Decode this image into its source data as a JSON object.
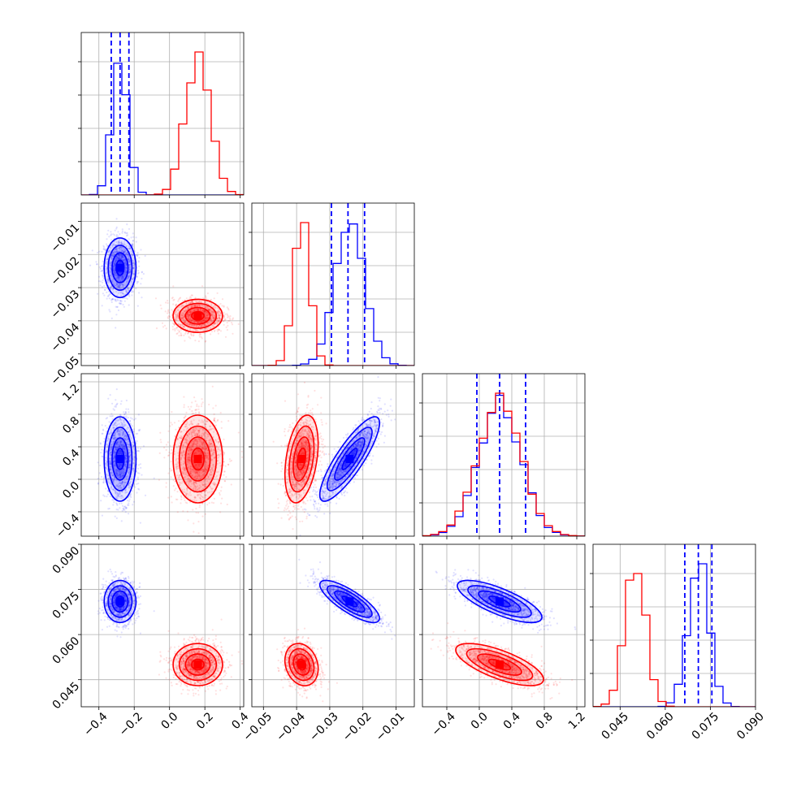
{
  "chart_data": {
    "type": "corner",
    "title": "",
    "colors": {
      "blue": "#0000ff",
      "red": "#ff0000",
      "grid": "#b0b0b0"
    },
    "parameters": [
      {
        "index": 0,
        "range": [
          -0.5,
          0.42
        ],
        "ticks": [
          -0.4,
          -0.2,
          0.0,
          0.2,
          0.4
        ],
        "tick_labels": [
          "−0.4",
          "−0.2",
          "0.0",
          "0.2",
          "0.4"
        ]
      },
      {
        "index": 1,
        "range": [
          -0.0535,
          -0.0045
        ],
        "ticks": [
          -0.05,
          -0.04,
          -0.03,
          -0.02,
          -0.01
        ],
        "tick_labels": [
          "−0.05",
          "−0.04",
          "−0.03",
          "−0.02",
          "−0.01"
        ]
      },
      {
        "index": 2,
        "range": [
          -0.7,
          1.3
        ],
        "ticks": [
          -0.4,
          0.0,
          0.4,
          0.8,
          1.2
        ],
        "tick_labels": [
          "−0.4",
          "0.0",
          "0.4",
          "0.8",
          "1.2"
        ]
      },
      {
        "index": 3,
        "range": [
          0.036,
          0.09
        ],
        "ticks": [
          0.045,
          0.06,
          0.075,
          0.09
        ],
        "tick_labels": [
          "0.045",
          "0.060",
          "0.075",
          "0.090"
        ]
      }
    ],
    "series": [
      {
        "color": "blue",
        "means": [
          -0.28,
          -0.024,
          0.25,
          0.071
        ],
        "sigmas": [
          0.045,
          0.0045,
          0.26,
          0.0035
        ],
        "quantiles": [
          [
            -0.33,
            -0.28,
            -0.23
          ],
          [
            -0.0295,
            -0.0245,
            -0.0195
          ],
          [
            -0.03,
            0.25,
            0.57
          ],
          [
            0.0665,
            0.071,
            0.0755
          ]
        ],
        "correlations": {
          "0-1": 0.0,
          "0-2": 0.0,
          "0-3": 0.0,
          "1-2": 0.85,
          "1-3": -0.8,
          "2-3": -0.75
        }
      },
      {
        "color": "red",
        "means": [
          0.16,
          -0.0385,
          0.25,
          0.05
        ],
        "sigmas": [
          0.07,
          0.0025,
          0.27,
          0.0035
        ],
        "quantiles": null,
        "correlations": {
          "0-1": 0.0,
          "0-2": 0.0,
          "0-3": 0.0,
          "1-2": 0.35,
          "1-3": -0.2,
          "2-3": -0.7
        }
      }
    ],
    "grid": true
  }
}
